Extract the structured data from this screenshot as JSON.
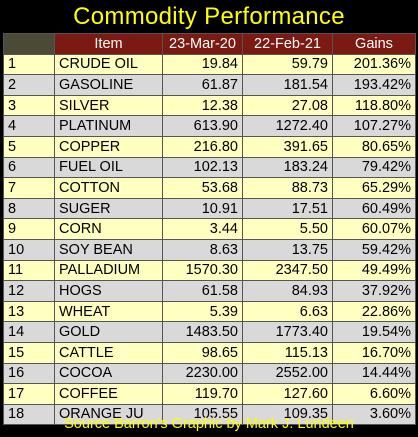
{
  "title": "Commodity Performance",
  "headers": {
    "item": "Item",
    "col1": "23-Mar-20",
    "col2": "22-Feb-21",
    "gains": "Gains"
  },
  "rows": [
    {
      "rank": "1",
      "item": "CRUDE OIL",
      "v1": "19.84",
      "v2": "59.79",
      "gain": "201.36%"
    },
    {
      "rank": "2",
      "item": "GASOLINE",
      "v1": "61.87",
      "v2": "181.54",
      "gain": "193.42%"
    },
    {
      "rank": "3",
      "item": "SILVER",
      "v1": "12.38",
      "v2": "27.08",
      "gain": "118.80%"
    },
    {
      "rank": "4",
      "item": "PLATINUM",
      "v1": "613.90",
      "v2": "1272.40",
      "gain": "107.27%"
    },
    {
      "rank": "5",
      "item": "COPPER",
      "v1": "216.80",
      "v2": "391.65",
      "gain": "80.65%"
    },
    {
      "rank": "6",
      "item": "FUEL OIL",
      "v1": "102.13",
      "v2": "183.24",
      "gain": "79.42%"
    },
    {
      "rank": "7",
      "item": "COTTON",
      "v1": "53.68",
      "v2": "88.73",
      "gain": "65.29%"
    },
    {
      "rank": "8",
      "item": "SUGER",
      "v1": "10.91",
      "v2": "17.51",
      "gain": "60.49%"
    },
    {
      "rank": "9",
      "item": "CORN",
      "v1": "3.44",
      "v2": "5.50",
      "gain": "60.07%"
    },
    {
      "rank": "10",
      "item": "SOY BEAN",
      "v1": "8.63",
      "v2": "13.75",
      "gain": "59.42%"
    },
    {
      "rank": "11",
      "item": "PALLADIUM",
      "v1": "1570.30",
      "v2": "2347.50",
      "gain": "49.49%"
    },
    {
      "rank": "12",
      "item": "HOGS",
      "v1": "61.58",
      "v2": "84.93",
      "gain": "37.92%"
    },
    {
      "rank": "13",
      "item": "WHEAT",
      "v1": "5.39",
      "v2": "6.63",
      "gain": "22.86%"
    },
    {
      "rank": "14",
      "item": "GOLD",
      "v1": "1483.50",
      "v2": "1773.40",
      "gain": "19.54%"
    },
    {
      "rank": "15",
      "item": "CATTLE",
      "v1": "98.65",
      "v2": "115.13",
      "gain": "16.70%"
    },
    {
      "rank": "16",
      "item": "COCOA",
      "v1": "2230.00",
      "v2": "2552.00",
      "gain": "14.44%"
    },
    {
      "rank": "17",
      "item": "COFFEE",
      "v1": "119.70",
      "v2": "127.60",
      "gain": "6.60%"
    },
    {
      "rank": "18",
      "item": "ORANGE JU",
      "v1": "105.55",
      "v2": "109.35",
      "gain": "3.60%"
    }
  ],
  "source": "Source Barron's  Graphic by Mark J. Lundeen",
  "colors": {
    "background": "#000000",
    "title": "#FFFF00",
    "header_bg": "#7B1A12",
    "header_text": "#FFFFFF",
    "row_odd": "#FFFFC0",
    "row_even": "#D9D9D9"
  }
}
